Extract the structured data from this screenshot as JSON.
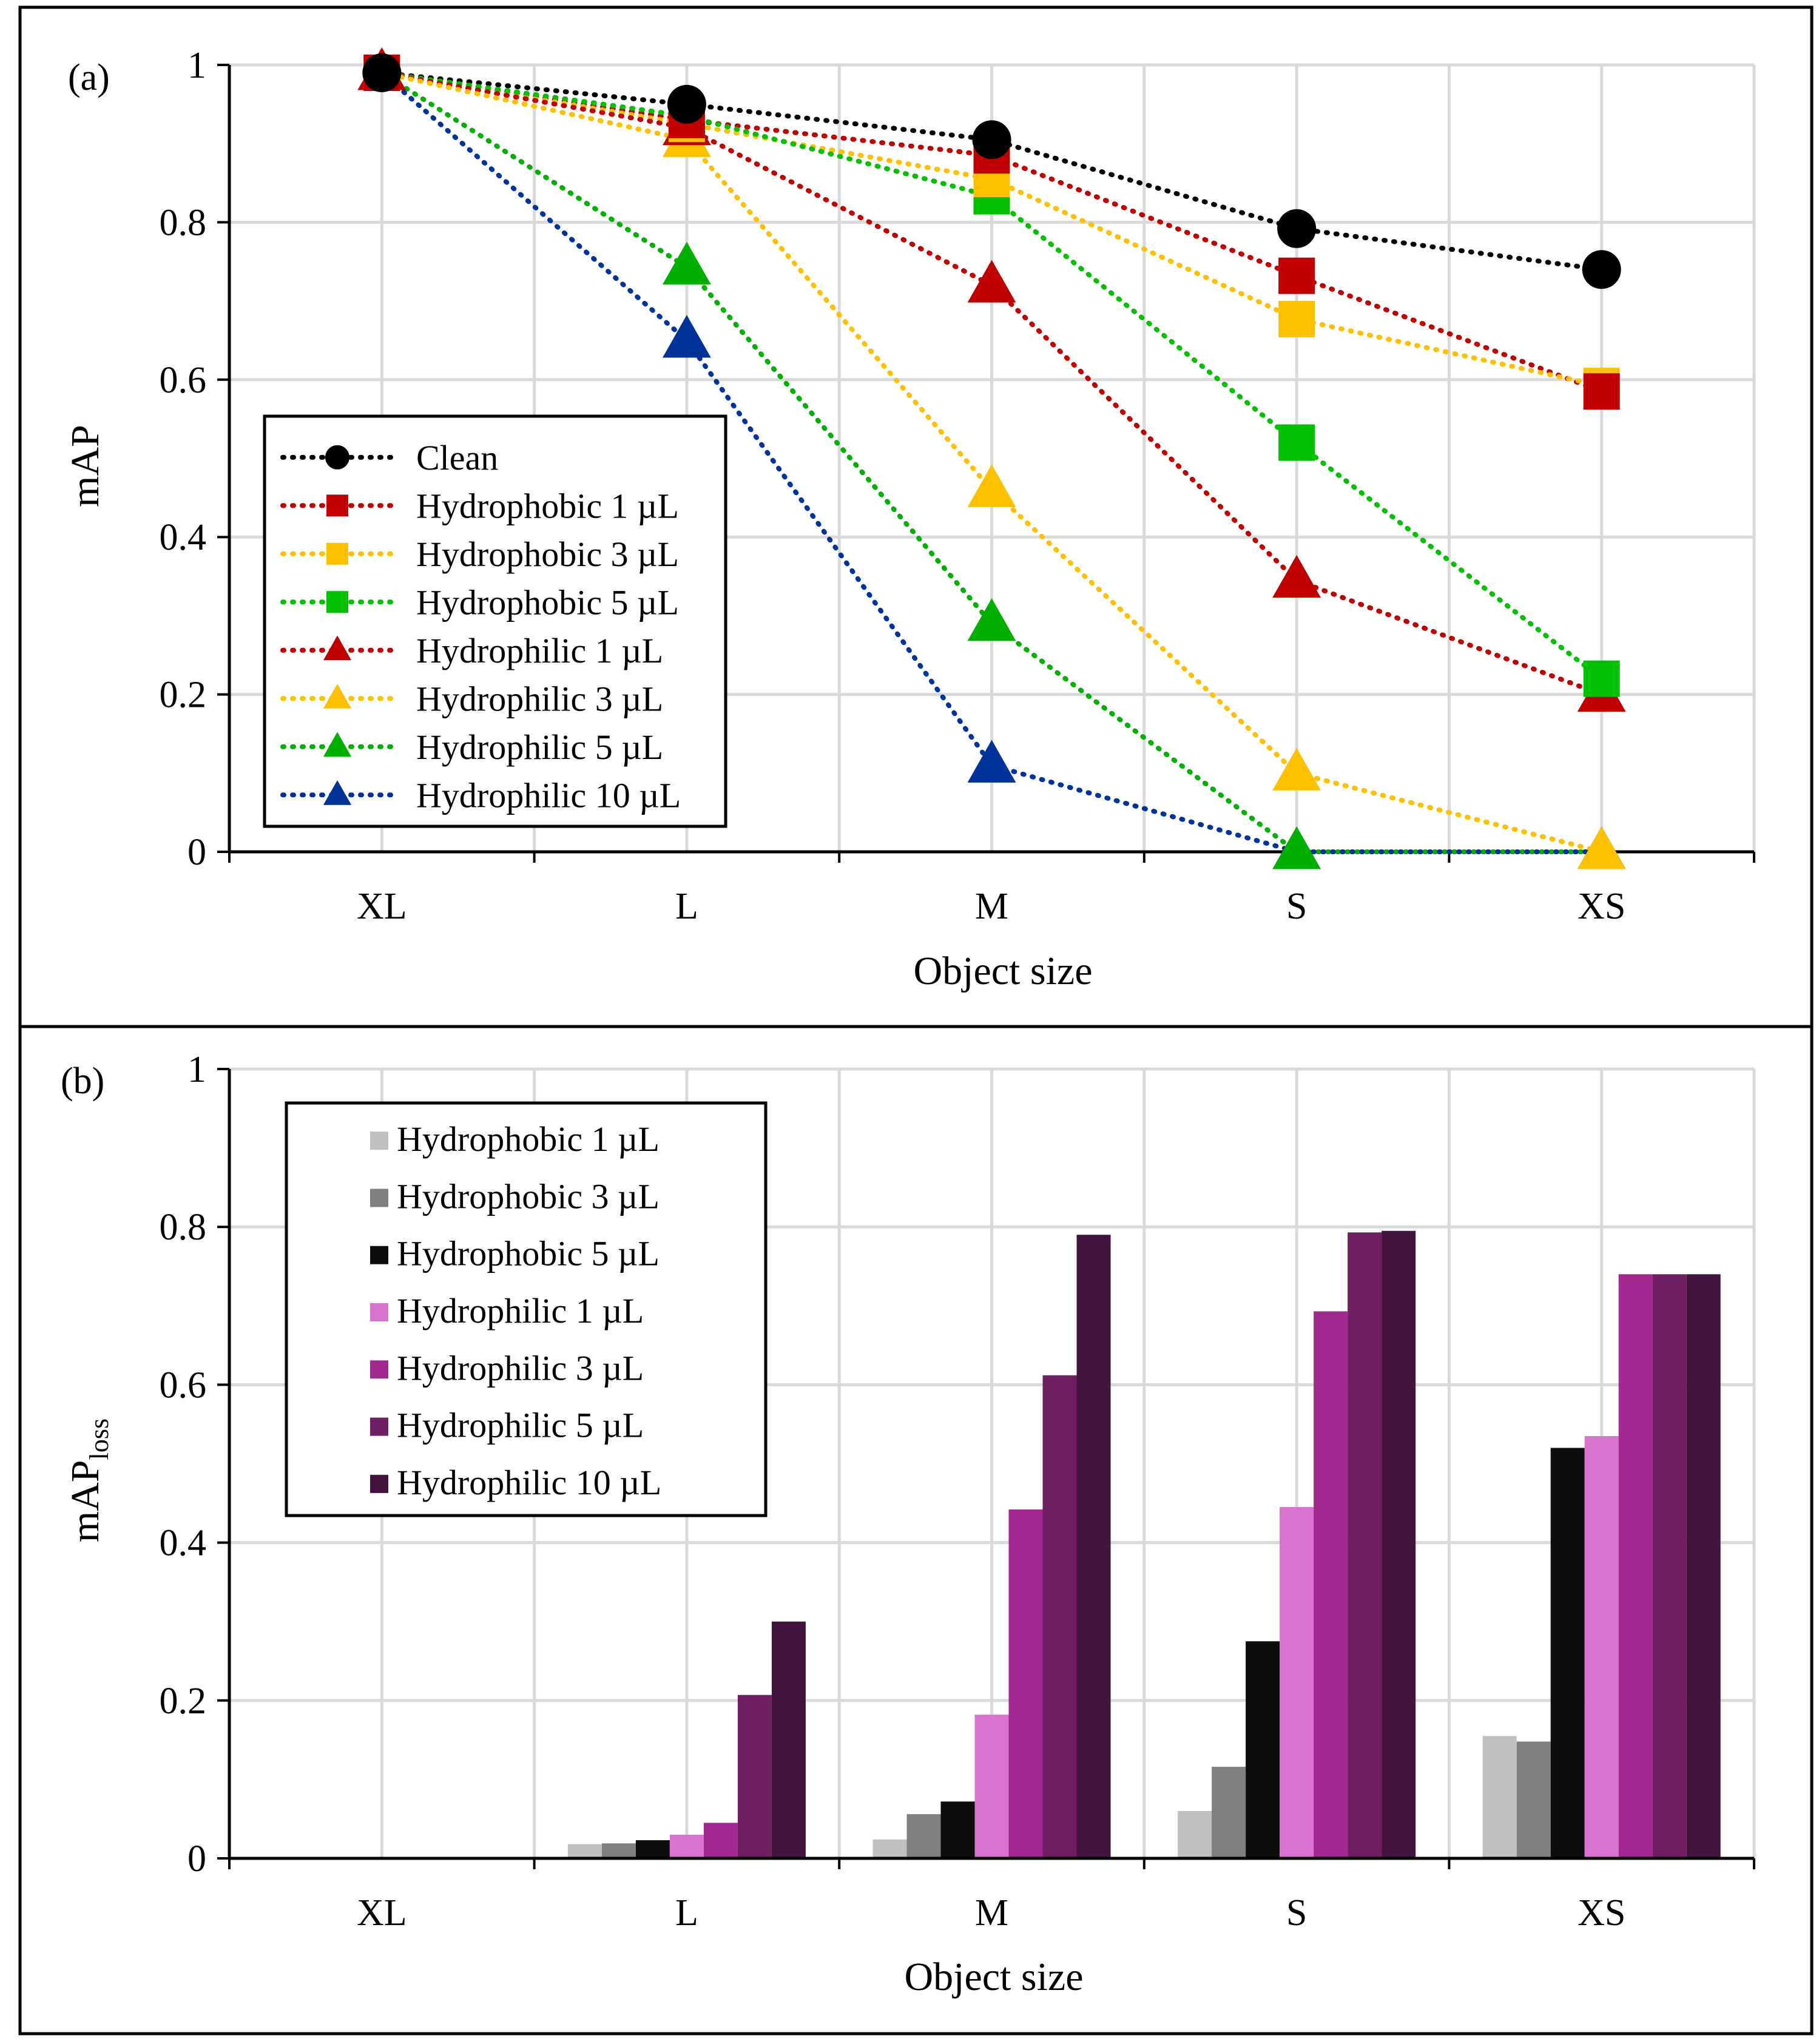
{
  "chart_data": [
    {
      "type": "line",
      "panel_label": "(a)",
      "xlabel": "Object size",
      "ylabel": "mAP",
      "categories": [
        "XL",
        "L",
        "M",
        "S",
        "XS"
      ],
      "ylim": [
        0,
        1
      ],
      "yticks": [
        "0",
        "0.2",
        "0.4",
        "0.6",
        "0.8",
        "1"
      ],
      "grid": true,
      "legend_position": "bottom-left",
      "series": [
        {
          "name": "Clean",
          "color": "#000000",
          "marker": "circle",
          "values": [
            0.99,
            0.95,
            0.905,
            0.792,
            0.74
          ]
        },
        {
          "name": "Hydrophobic 1 µL",
          "color": "#C00000",
          "marker": "square",
          "values": [
            0.99,
            0.93,
            0.885,
            0.732,
            0.585
          ]
        },
        {
          "name": "Hydrophobic 3 µL",
          "color": "#FFC000",
          "marker": "square",
          "values": [
            0.99,
            0.925,
            0.855,
            0.677,
            0.592
          ]
        },
        {
          "name": "Hydrophobic 5 µL",
          "color": "#00C000",
          "marker": "square",
          "values": [
            0.99,
            0.935,
            0.833,
            0.52,
            0.22
          ]
        },
        {
          "name": "Hydrophilic 1 µL",
          "color": "#C00000",
          "marker": "triangle",
          "values": [
            0.99,
            0.92,
            0.72,
            0.345,
            0.2
          ]
        },
        {
          "name": "Hydrophilic 3 µL",
          "color": "#FFC000",
          "marker": "triangle",
          "values": [
            0.99,
            0.905,
            0.46,
            0.1,
            0
          ]
        },
        {
          "name": "Hydrophilic 5 µL",
          "color": "#00B000",
          "marker": "triangle",
          "values": [
            0.99,
            0.743,
            0.29,
            0,
            0
          ]
        },
        {
          "name": "Hydrophilic 10 µL",
          "color": "#003399",
          "marker": "triangle",
          "values": [
            0.99,
            0.65,
            0.11,
            0,
            0
          ]
        }
      ]
    },
    {
      "type": "bar",
      "panel_label": "(b)",
      "xlabel": "Object size",
      "ylabel": "mAP",
      "ylabel_sub": "loss",
      "categories": [
        "XL",
        "L",
        "M",
        "S",
        "XS"
      ],
      "ylim": [
        0,
        1
      ],
      "yticks": [
        "0",
        "0.2",
        "0.4",
        "0.6",
        "0.8",
        "1"
      ],
      "grid": true,
      "legend_position": "top-left",
      "series": [
        {
          "name": "Hydrophobic 1 µL",
          "color": "#C0C0C0",
          "values": [
            0,
            0.018,
            0.024,
            0.06,
            0.155
          ]
        },
        {
          "name": "Hydrophobic 3 µL",
          "color": "#808080",
          "values": [
            0,
            0.019,
            0.056,
            0.116,
            0.148
          ]
        },
        {
          "name": "Hydrophobic 5 µL",
          "color": "#0D0D0D",
          "values": [
            0,
            0.023,
            0.072,
            0.275,
            0.52
          ]
        },
        {
          "name": "Hydrophilic 1 µL",
          "color": "#D873CF",
          "values": [
            0,
            0.03,
            0.182,
            0.445,
            0.535
          ]
        },
        {
          "name": "Hydrophilic 3 µL",
          "color": "#A0288F",
          "values": [
            0,
            0.045,
            0.442,
            0.693,
            0.74
          ]
        },
        {
          "name": "Hydrophilic 5 µL",
          "color": "#6E1E62",
          "values": [
            0,
            0.207,
            0.612,
            0.793,
            0.74
          ]
        },
        {
          "name": "Hydrophilic 10 µL",
          "color": "#43143D",
          "values": [
            0,
            0.3,
            0.79,
            0.795,
            0.74
          ]
        }
      ]
    }
  ]
}
